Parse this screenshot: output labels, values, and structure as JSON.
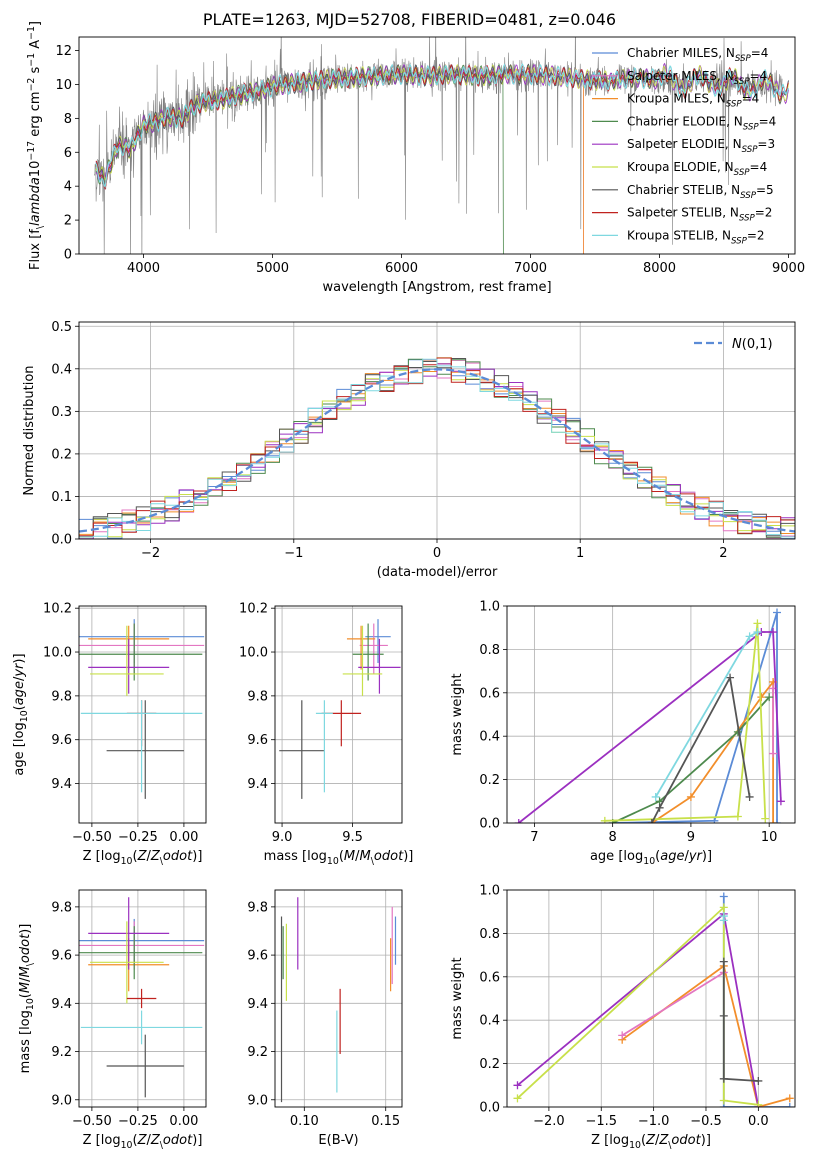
{
  "figure": {
    "title": "PLATE=1263, MJD=52708, FIBERID=0481, z=0.046"
  },
  "series_styles": [
    {
      "name": "Chabrier MILES, N$_{SSP}$=4",
      "color": "#5b8bd6"
    },
    {
      "name": "Salpeter MILES, N$_{SSP}$=4",
      "color": "#e377c2"
    },
    {
      "name": "Kroupa MILES, N$_{SSP}$=4",
      "color": "#f28e2b"
    },
    {
      "name": "Chabrier ELODIE, N$_{SSP}$=4",
      "color": "#4e8a4e"
    },
    {
      "name": "Salpeter ELODIE, N$_{SSP}$=3",
      "color": "#9b30c0"
    },
    {
      "name": "Kroupa ELODIE, N$_{SSP}$=4",
      "color": "#c8e04a"
    },
    {
      "name": "Chabrier STELIB, N$_{SSP}$=5",
      "color": "#555555"
    },
    {
      "name": "Salpeter STELIB, N$_{SSP}$=2",
      "color": "#c0221f"
    },
    {
      "name": "Kroupa STELIB, N$_{SSP}$=2",
      "color": "#7fd8e0"
    }
  ],
  "chart_data": [
    {
      "type": "line",
      "id": "spectrum",
      "xlabel": "wavelength [Angstrom, rest frame]",
      "ylabel": "Flux [f$_\\lambda$10$^{-17}$ erg cm$^{-2}$ s$^{-1}$ A$^{-1}$]",
      "xlim": [
        3500,
        9050
      ],
      "ylim": [
        0,
        12.8
      ],
      "xticks": [
        4000,
        5000,
        6000,
        7000,
        8000,
        9000
      ],
      "yticks": [
        0,
        2,
        4,
        6,
        8,
        10,
        12
      ],
      "legend": "top-right",
      "legend_entries": [
        "Chabrier MILES, N$_{SSP}$=4",
        "Salpeter MILES, N$_{SSP}$=4",
        "Kroupa MILES, N$_{SSP}$=4",
        "Chabrier ELODIE, N$_{SSP}$=4",
        "Salpeter ELODIE, N$_{SSP}$=3",
        "Kroupa ELODIE, N$_{SSP}$=4",
        "Chabrier STELIB, N$_{SSP}$=5",
        "Salpeter STELIB, N$_{SSP}$=2",
        "Kroupa STELIB, N$_{SSP}$=2"
      ],
      "data_envelope": {
        "wavelength": [
          3620,
          3700,
          3800,
          3900,
          4000,
          4100,
          4200,
          4300,
          4400,
          4500,
          4600,
          4700,
          4800,
          4900,
          5000,
          5200,
          5400,
          5600,
          5800,
          6000,
          6200,
          6400,
          6600,
          6800,
          7000,
          7200,
          7400,
          7600,
          7800,
          8000,
          8200,
          8400,
          8600,
          8800,
          8950
        ],
        "flux": [
          5.0,
          4.4,
          6.4,
          6.2,
          7.6,
          7.8,
          8.1,
          8.0,
          8.8,
          9.0,
          9.1,
          9.3,
          9.5,
          9.6,
          9.9,
          10.1,
          10.3,
          10.4,
          10.5,
          10.6,
          10.5,
          10.6,
          10.5,
          10.6,
          10.6,
          10.5,
          10.3,
          10.2,
          10.4,
          10.3,
          10.1,
          10.2,
          10.0,
          9.9,
          9.8
        ]
      },
      "model_cutoffs": {
        "wavelength_end": [
          7400,
          6800,
          9000
        ]
      }
    },
    {
      "type": "bar",
      "id": "residual-hist",
      "xlabel": "(data-model)/error",
      "ylabel": "Normed distribution",
      "xlim": [
        -2.5,
        2.5
      ],
      "ylim": [
        0,
        0.51
      ],
      "xticks": [
        -2,
        -1,
        0,
        1,
        2
      ],
      "yticks": [
        0.0,
        0.1,
        0.2,
        0.3,
        0.4,
        0.5
      ],
      "grid": true,
      "legend": "top-right",
      "legend_entries": [
        "$\\mathcal{N}(0,1)$"
      ],
      "reference_curve": {
        "name": "$\\mathcal{N}(0,1)$",
        "mu": 0,
        "sigma": 1,
        "style": "dashed",
        "color": "#5b8bd6"
      },
      "bin_width": 0.1
    },
    {
      "type": "scatter",
      "id": "age-vs-Z",
      "xlabel": "Z [log$_{10}$($Z/Z_\\odot$)]",
      "ylabel": "age  [log$_{10}$($age/yr$)]",
      "xlim": [
        -0.57,
        0.12
      ],
      "ylim": [
        9.22,
        10.21
      ],
      "xticks": [
        -0.5,
        -0.25,
        0.0
      ],
      "xticklabels": [
        "−0.50",
        "−0.25",
        "0.00"
      ],
      "yticks": [
        9.4,
        9.6,
        9.8,
        10.0,
        10.2
      ],
      "grid": true,
      "points": [
        {
          "series": 0,
          "x": -0.27,
          "y": 10.07,
          "xerr": [
            0.38,
            0.38
          ],
          "yerr": [
            0.12,
            0.08
          ]
        },
        {
          "series": 1,
          "x": -0.27,
          "y": 10.03,
          "xerr": [
            0.38,
            0.38
          ],
          "yerr": [
            0.13,
            0.1
          ]
        },
        {
          "series": 2,
          "x": -0.3,
          "y": 10.06,
          "xerr": [
            0.22,
            0.22
          ],
          "yerr": [
            0.14,
            0.06
          ]
        },
        {
          "series": 3,
          "x": -0.27,
          "y": 9.99,
          "xerr": [
            0.37,
            0.37
          ],
          "yerr": [
            0.12,
            0.14
          ]
        },
        {
          "series": 4,
          "x": -0.3,
          "y": 9.93,
          "xerr": [
            0.22,
            0.22
          ],
          "yerr": [
            0.12,
            0.13
          ]
        },
        {
          "series": 5,
          "x": -0.31,
          "y": 9.9,
          "xerr": [
            0.2,
            0.2
          ],
          "yerr": [
            0.1,
            0.22
          ]
        },
        {
          "series": 6,
          "x": -0.21,
          "y": 9.55,
          "xerr": [
            0.21,
            0.21
          ],
          "yerr": [
            0.22,
            0.23
          ]
        },
        {
          "series": 7,
          "x": -0.23,
          "y": 9.72,
          "xerr": [
            0.08,
            0.08
          ],
          "yerr": [
            0.15,
            0.06
          ]
        },
        {
          "series": 8,
          "x": -0.23,
          "y": 9.72,
          "xerr": [
            0.33,
            0.33
          ],
          "yerr": [
            0.36,
            0.06
          ]
        }
      ]
    },
    {
      "type": "scatter",
      "id": "age-vs-mass",
      "xlabel": "mass [log$_{10}$($M/M_\\odot$)]",
      "ylabel": "",
      "xlim": [
        8.95,
        9.85
      ],
      "ylim": [
        9.22,
        10.21
      ],
      "xticks": [
        9.0,
        9.5
      ],
      "yticks": [
        9.4,
        9.6,
        9.8,
        10.0,
        10.2
      ],
      "grid": true,
      "points": [
        {
          "series": 0,
          "x": 9.68,
          "y": 10.07,
          "xerr": [
            0.09,
            0.09
          ],
          "yerr": [
            0.12,
            0.08
          ]
        },
        {
          "series": 1,
          "x": 9.65,
          "y": 10.03,
          "xerr": [
            0.1,
            0.1
          ],
          "yerr": [
            0.13,
            0.1
          ]
        },
        {
          "series": 2,
          "x": 9.56,
          "y": 10.06,
          "xerr": [
            0.1,
            0.1
          ],
          "yerr": [
            0.14,
            0.06
          ]
        },
        {
          "series": 3,
          "x": 9.61,
          "y": 9.99,
          "xerr": [
            0.11,
            0.11
          ],
          "yerr": [
            0.12,
            0.14
          ]
        },
        {
          "series": 4,
          "x": 9.69,
          "y": 9.93,
          "xerr": [
            0.15,
            0.15
          ],
          "yerr": [
            0.12,
            0.13
          ]
        },
        {
          "series": 5,
          "x": 9.57,
          "y": 9.9,
          "xerr": [
            0.14,
            0.14
          ],
          "yerr": [
            0.1,
            0.22
          ]
        },
        {
          "series": 6,
          "x": 9.14,
          "y": 9.55,
          "xerr": [
            0.16,
            0.16
          ],
          "yerr": [
            0.22,
            0.23
          ]
        },
        {
          "series": 7,
          "x": 9.42,
          "y": 9.72,
          "xerr": [
            0.14,
            0.14
          ],
          "yerr": [
            0.15,
            0.06
          ]
        },
        {
          "series": 8,
          "x": 9.3,
          "y": 9.72,
          "xerr": [
            0.06,
            0.06
          ],
          "yerr": [
            0.36,
            0.06
          ]
        }
      ]
    },
    {
      "type": "line",
      "id": "massweight-vs-age",
      "xlabel": "age  [log$_{10}$($age/yr$)]",
      "ylabel": "mass weight",
      "xlim": [
        6.65,
        10.33
      ],
      "ylim": [
        0,
        1.0
      ],
      "xticks": [
        7,
        8,
        9,
        10
      ],
      "yticks": [
        0.0,
        0.2,
        0.4,
        0.6,
        0.8,
        1.0
      ],
      "grid": true,
      "series": [
        {
          "series": 0,
          "x": [
            8.0,
            9.3,
            10.1,
            10.1
          ],
          "y": [
            0.0,
            0.01,
            0.97,
            0.0
          ]
        },
        {
          "series": 2,
          "x": [
            8.5,
            9.0,
            9.9,
            10.05,
            10.05
          ],
          "y": [
            0.0,
            0.12,
            0.58,
            0.65,
            0.0
          ]
        },
        {
          "series": 1,
          "x": [
            10.05,
            10.05
          ],
          "y": [
            0.32,
            0.62
          ]
        },
        {
          "series": 3,
          "x": [
            8.0,
            8.6,
            9.6,
            10.0
          ],
          "y": [
            0.0,
            0.1,
            0.42,
            0.58
          ]
        },
        {
          "series": 4,
          "x": [
            6.8,
            9.9,
            10.05,
            10.15
          ],
          "y": [
            0.0,
            0.88,
            0.88,
            0.1
          ]
        },
        {
          "series": 5,
          "x": [
            7.9,
            9.6,
            9.85,
            9.95
          ],
          "y": [
            0.01,
            0.03,
            0.92,
            0.02
          ]
        },
        {
          "series": 6,
          "x": [
            8.5,
            8.6,
            9.5,
            9.75
          ],
          "y": [
            0.0,
            0.07,
            0.67,
            0.12
          ]
        },
        {
          "series": 8,
          "x": [
            8.55,
            9.75,
            9.85
          ],
          "y": [
            0.12,
            0.86,
            0.88
          ]
        }
      ]
    },
    {
      "type": "scatter",
      "id": "mass-vs-Z",
      "xlabel": "Z [log$_{10}$($Z/Z_\\odot$)]",
      "ylabel": "mass [log$_{10}$($M/M_\\odot$)]",
      "xlim": [
        -0.57,
        0.12
      ],
      "ylim": [
        8.97,
        9.87
      ],
      "xticks": [
        -0.5,
        -0.25,
        0.0
      ],
      "xticklabels": [
        "−0.50",
        "−0.25",
        "0.00"
      ],
      "yticks": [
        9.0,
        9.2,
        9.4,
        9.6,
        9.8
      ],
      "grid": true,
      "points": [
        {
          "series": 0,
          "x": -0.27,
          "y": 9.66,
          "xerr": [
            0.38,
            0.38
          ],
          "yerr": [
            0.09,
            0.09
          ]
        },
        {
          "series": 1,
          "x": -0.27,
          "y": 9.64,
          "xerr": [
            0.38,
            0.38
          ],
          "yerr": [
            0.1,
            0.1
          ]
        },
        {
          "series": 2,
          "x": -0.3,
          "y": 9.56,
          "xerr": [
            0.22,
            0.22
          ],
          "yerr": [
            0.11,
            0.11
          ]
        },
        {
          "series": 3,
          "x": -0.27,
          "y": 9.61,
          "xerr": [
            0.37,
            0.37
          ],
          "yerr": [
            0.11,
            0.11
          ]
        },
        {
          "series": 4,
          "x": -0.3,
          "y": 9.69,
          "xerr": [
            0.22,
            0.22
          ],
          "yerr": [
            0.15,
            0.15
          ]
        },
        {
          "series": 5,
          "x": -0.31,
          "y": 9.57,
          "xerr": [
            0.2,
            0.2
          ],
          "yerr": [
            0.17,
            0.17
          ]
        },
        {
          "series": 6,
          "x": -0.21,
          "y": 9.14,
          "xerr": [
            0.21,
            0.21
          ],
          "yerr": [
            0.13,
            0.13
          ]
        },
        {
          "series": 7,
          "x": -0.23,
          "y": 9.42,
          "xerr": [
            0.08,
            0.08
          ],
          "yerr": [
            0.04,
            0.04
          ]
        },
        {
          "series": 8,
          "x": -0.23,
          "y": 9.3,
          "xerr": [
            0.33,
            0.33
          ],
          "yerr": [
            0.07,
            0.07
          ]
        }
      ]
    },
    {
      "type": "scatter",
      "id": "mass-vs-ebv",
      "xlabel": "E(B-V)",
      "ylabel": "",
      "xlim": [
        0.082,
        0.16
      ],
      "ylim": [
        8.97,
        9.87
      ],
      "xticks": [
        0.1,
        0.15
      ],
      "yticks": [
        9.0,
        9.2,
        9.4,
        9.6,
        9.8
      ],
      "grid": true,
      "points": [
        {
          "series": 0,
          "x": 0.156,
          "y": 9.66,
          "xerr": [
            0,
            0
          ],
          "yerr": [
            0.1,
            0.1
          ]
        },
        {
          "series": 1,
          "x": 0.154,
          "y": 9.64,
          "xerr": [
            0,
            0
          ],
          "yerr": [
            0.16,
            0.16
          ]
        },
        {
          "series": 2,
          "x": 0.153,
          "y": 9.56,
          "xerr": [
            0,
            0
          ],
          "yerr": [
            0.11,
            0.11
          ]
        },
        {
          "series": 3,
          "x": 0.087,
          "y": 9.61,
          "xerr": [
            0,
            0
          ],
          "yerr": [
            0.11,
            0.11
          ]
        },
        {
          "series": 4,
          "x": 0.096,
          "y": 9.69,
          "xerr": [
            0,
            0
          ],
          "yerr": [
            0.15,
            0.15
          ]
        },
        {
          "series": 5,
          "x": 0.089,
          "y": 9.57,
          "xerr": [
            0,
            0
          ],
          "yerr": [
            0.16,
            0.16
          ]
        },
        {
          "series": 6,
          "x": 0.086,
          "y": 9.44,
          "xerr": [
            0,
            0
          ],
          "yerr": [
            0.45,
            0.32
          ]
        },
        {
          "series": 7,
          "x": 0.122,
          "y": 9.32,
          "xerr": [
            0,
            0
          ],
          "yerr": [
            0.13,
            0.14
          ]
        },
        {
          "series": 8,
          "x": 0.12,
          "y": 9.2,
          "xerr": [
            0,
            0
          ],
          "yerr": [
            0.17,
            0.17
          ]
        }
      ]
    },
    {
      "type": "line",
      "id": "massweight-vs-Z",
      "xlabel": "Z [log$_{10}$($Z/Z_\\odot$)]",
      "ylabel": "mass weight",
      "xlim": [
        -2.4,
        0.35
      ],
      "ylim": [
        0,
        1.0
      ],
      "xticks": [
        -2.0,
        -1.5,
        -1.0,
        -0.5,
        0.0
      ],
      "xticklabels": [
        "−2.0",
        "−1.5",
        "−1.0",
        "−0.5",
        "0.0"
      ],
      "yticks": [
        0.0,
        0.2,
        0.4,
        0.6,
        0.8,
        1.0
      ],
      "grid": true,
      "series": [
        {
          "series": 0,
          "x": [
            -0.33,
            -0.33,
            0.0,
            0.3
          ],
          "y": [
            0.97,
            0.0,
            0.0,
            0.0
          ]
        },
        {
          "series": 2,
          "x": [
            -1.3,
            -0.33,
            0.0,
            0.3
          ],
          "y": [
            0.31,
            0.65,
            0.0,
            0.04
          ]
        },
        {
          "series": 1,
          "x": [
            -1.3,
            -0.33
          ],
          "y": [
            0.33,
            0.62
          ]
        },
        {
          "series": 4,
          "x": [
            -2.3,
            -0.33,
            0.0
          ],
          "y": [
            0.1,
            0.89,
            0.0
          ]
        },
        {
          "series": 5,
          "x": [
            -2.3,
            -0.33,
            -0.33,
            0.0
          ],
          "y": [
            0.04,
            0.92,
            0.03,
            0.01
          ]
        },
        {
          "series": 6,
          "x": [
            -0.33,
            -0.33,
            -0.33,
            0.0
          ],
          "y": [
            0.67,
            0.42,
            0.13,
            0.12
          ]
        },
        {
          "series": 8,
          "x": [
            -0.33,
            -0.33
          ],
          "y": [
            0.86,
            0.88
          ]
        }
      ]
    }
  ]
}
